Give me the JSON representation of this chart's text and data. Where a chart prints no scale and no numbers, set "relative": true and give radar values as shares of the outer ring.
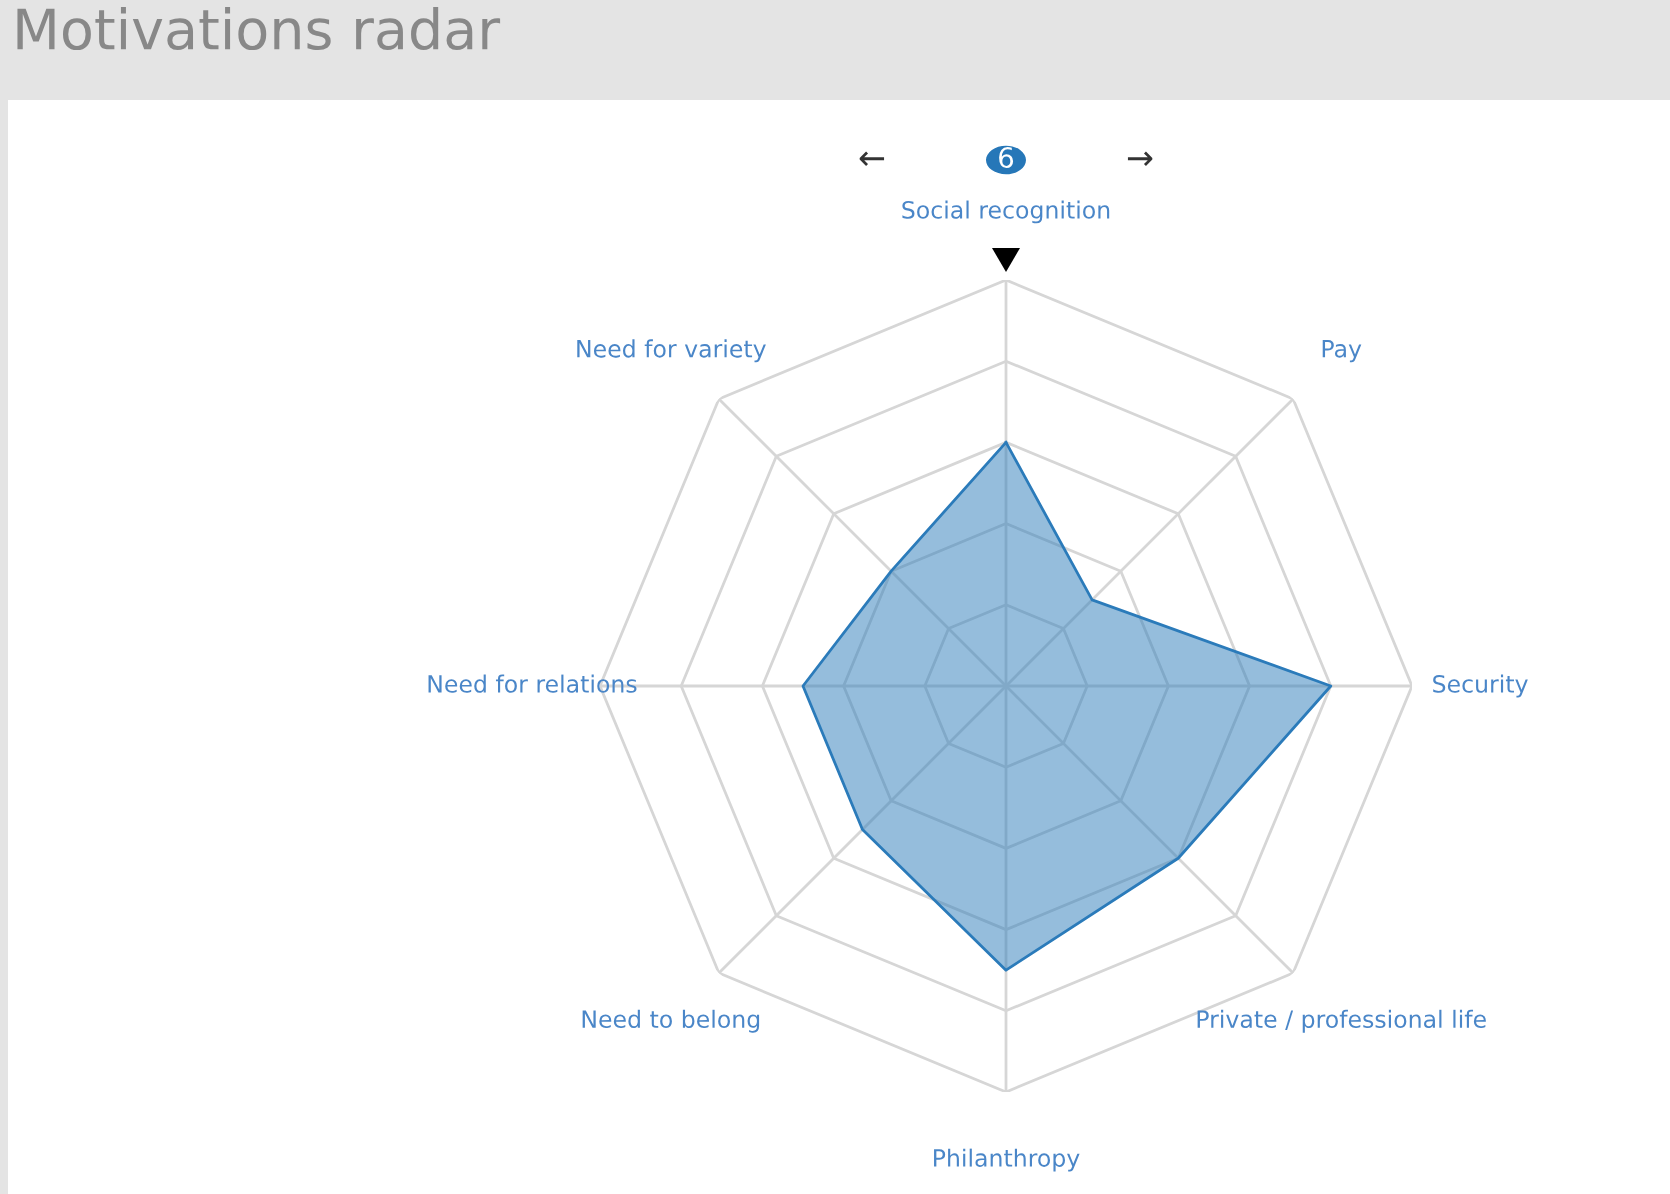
{
  "chart_data": {
    "type": "radar",
    "title": "Motivations radar",
    "relative": true,
    "grid": true,
    "categories": [
      "Social recognition",
      "Pay",
      "Security",
      "Private / professional life",
      "Philanthropy",
      "Need to belong",
      "Need for relations",
      "Need for variety"
    ],
    "series": [
      {
        "color": "#2b7bba",
        "values": [
          0.6,
          0.3,
          0.8,
          0.6,
          0.7,
          0.5,
          0.5,
          0.4
        ]
      }
    ],
    "annotations": [
      "←",
      "6",
      "→"
    ]
  }
}
